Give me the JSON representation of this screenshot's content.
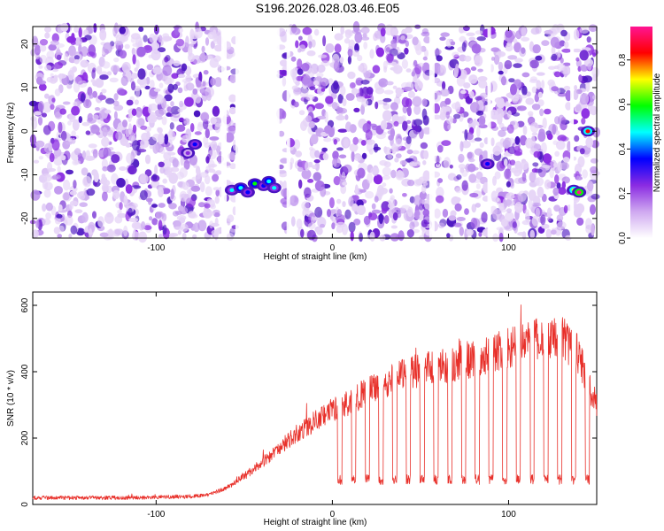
{
  "title": "S196.2026.028.03.46.E05",
  "chart_data": [
    {
      "type": "heatmap",
      "xlabel": "Height of straight line (km)",
      "ylabel": "Frequency (Hz)",
      "xlim": [
        -170,
        150
      ],
      "ylim": [
        -24.5,
        24
      ],
      "xticks": [
        -100,
        0,
        100
      ],
      "yticks": [
        -20,
        -10,
        0,
        10,
        20
      ],
      "colorbar": {
        "label": "Normalized spectral amplitude",
        "range": [
          0.0,
          0.95
        ],
        "ticks": [
          0.0,
          0.2,
          0.4,
          0.6,
          0.8
        ],
        "colors": [
          "#ffffff",
          "#cfa8f0",
          "#8a2be2",
          "#0000ff",
          "#00ffff",
          "#00ff00",
          "#ffff00",
          "#ff0000",
          "#ff1493"
        ]
      },
      "noise_mean_amplitude": 0.15,
      "gaps_km": [
        [
          -63,
          -60
        ],
        [
          -55,
          -30
        ],
        [
          -26,
          -24
        ],
        [
          55,
          58
        ],
        [
          88,
          90
        ],
        [
          135,
          137
        ]
      ],
      "features": [
        {
          "x_km": -78,
          "freq_hz": -3,
          "amp": 0.35
        },
        {
          "x_km": -82,
          "freq_hz": -5,
          "amp": 0.2
        },
        {
          "x_km": -57,
          "freq_hz": -13.5,
          "amp": 0.45
        },
        {
          "x_km": -52,
          "freq_hz": -13,
          "amp": 0.5
        },
        {
          "x_km": -48,
          "freq_hz": -14,
          "amp": 0.35
        },
        {
          "x_km": -44,
          "freq_hz": -12,
          "amp": 0.55
        },
        {
          "x_km": -39,
          "freq_hz": -12.5,
          "amp": 0.4
        },
        {
          "x_km": -36,
          "freq_hz": -11.5,
          "amp": 0.5
        },
        {
          "x_km": -33,
          "freq_hz": -13,
          "amp": 0.45
        },
        {
          "x_km": 88,
          "freq_hz": -7.5,
          "amp": 0.3
        },
        {
          "x_km": 137,
          "freq_hz": -13.5,
          "amp": 0.75
        },
        {
          "x_km": 140,
          "freq_hz": -14,
          "amp": 0.9
        },
        {
          "x_km": 145,
          "freq_hz": 0,
          "amp": 0.85
        }
      ]
    },
    {
      "type": "line",
      "xlabel": "Height of straight line (km)",
      "ylabel": "SNR (10 * v/v)",
      "xlim": [
        -170,
        150
      ],
      "ylim": [
        0,
        640
      ],
      "xticks": [
        -100,
        0,
        100
      ],
      "yticks": [
        0,
        200,
        400,
        600
      ],
      "series": [
        {
          "name": "SNR",
          "color": "#e8302a",
          "envelope": {
            "x": [
              -170,
              -120,
              -80,
              -70,
              -60,
              -50,
              -40,
              -30,
              -20,
              -10,
              0,
              10,
              20,
              30,
              40,
              50,
              60,
              70,
              80,
              90,
              100,
              110,
              120,
              130,
              140,
              145,
              150
            ],
            "y": [
              20,
              20,
              24,
              30,
              50,
              85,
              125,
              170,
              215,
              250,
              285,
              310,
              340,
              370,
              390,
              405,
              415,
              425,
              440,
              455,
              470,
              490,
              500,
              505,
              450,
              360,
              300
            ]
          },
          "dips": {
            "x_start": 3,
            "spacing_km": 7.8,
            "count": 19,
            "width_km": 2.4,
            "floor": [
              60,
              90
            ]
          }
        }
      ]
    }
  ]
}
